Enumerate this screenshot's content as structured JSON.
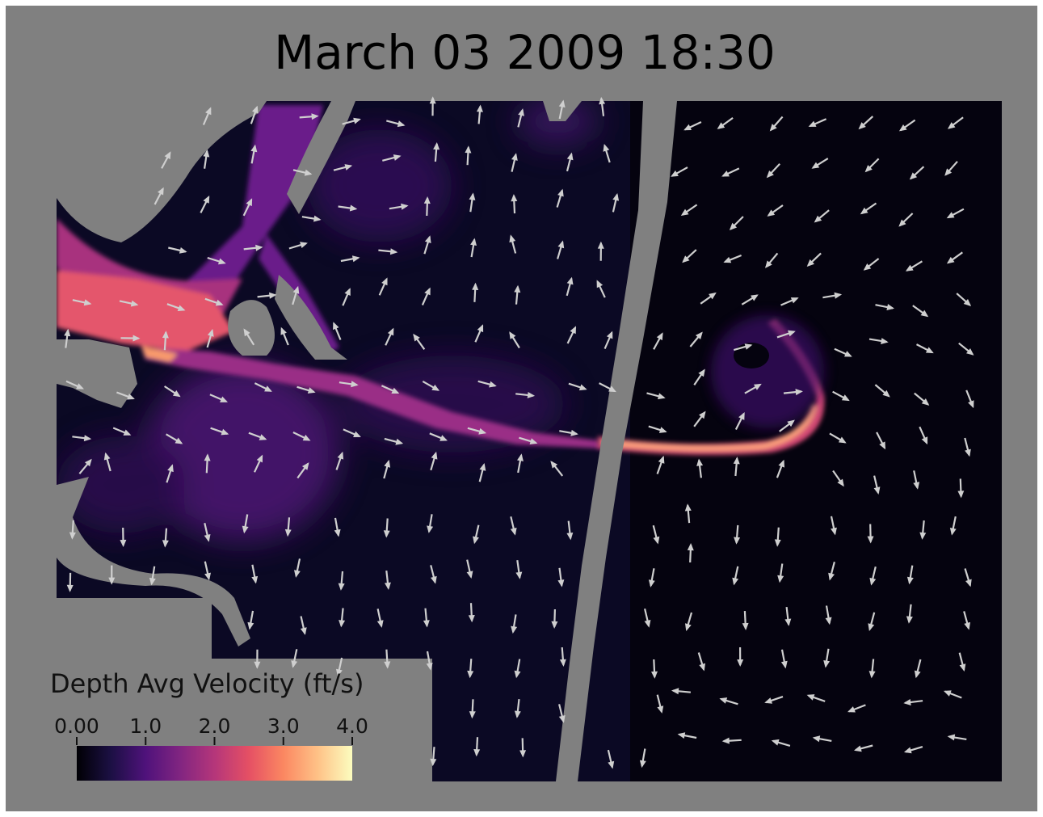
{
  "title": "March 03 2009 18:30",
  "colorbar": {
    "title": "Depth Avg Velocity (ft/s)",
    "min": 0.0,
    "max": 4.0,
    "ticks": [
      {
        "value": 0.0,
        "label": "0.00"
      },
      {
        "value": 1.0,
        "label": "1.0"
      },
      {
        "value": 2.0,
        "label": "2.0"
      },
      {
        "value": 3.0,
        "label": "3.0"
      },
      {
        "value": 4.0,
        "label": "4.0"
      }
    ],
    "colormap": "magma",
    "colormap_stops": [
      "#000004",
      "#1c1044",
      "#4f127b",
      "#812581",
      "#b5367a",
      "#e55064",
      "#fb8761",
      "#fec287",
      "#fcfdbf"
    ]
  },
  "colors": {
    "background_land": "#808080",
    "vector_color": "#cfcfcf",
    "water_low": "#0b0924"
  }
}
